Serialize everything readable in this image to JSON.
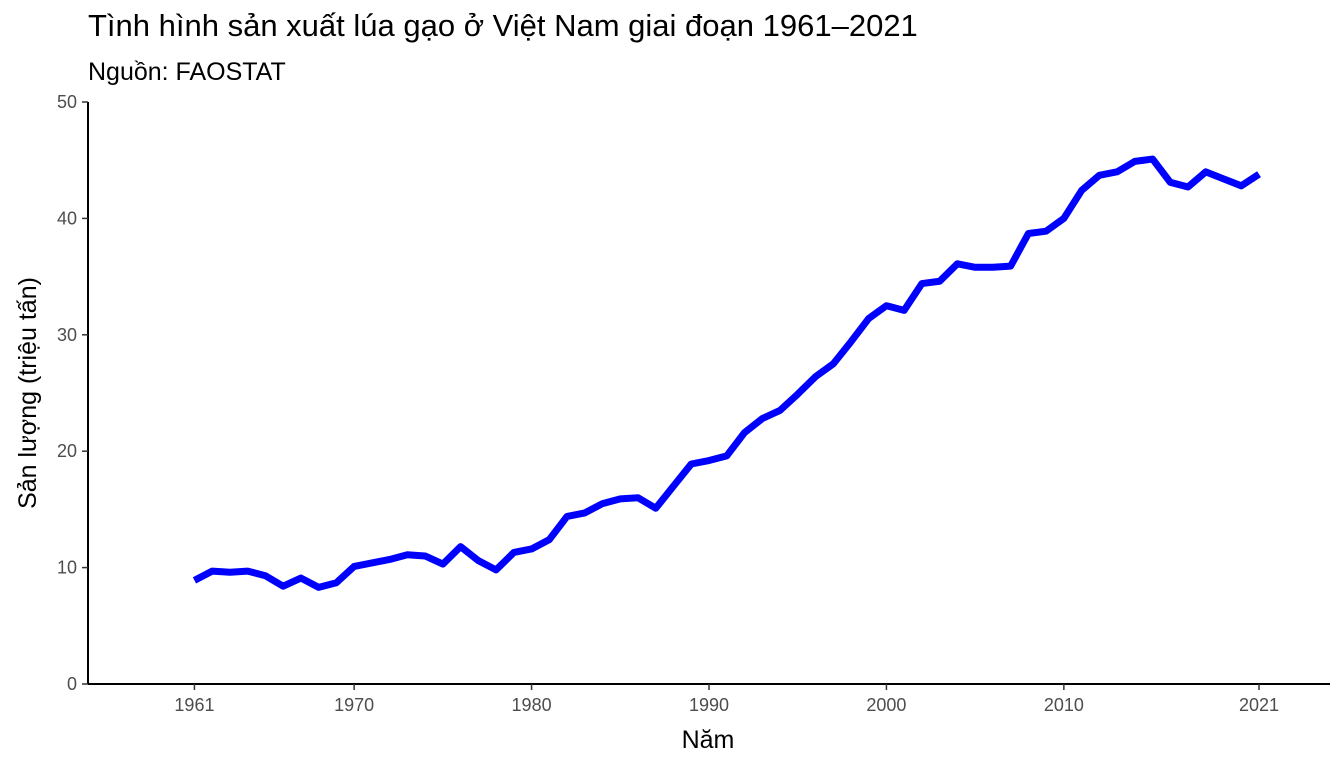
{
  "chart_data": {
    "type": "line",
    "title": "Tình hình sản xuất lúa gạo ở Việt Nam giai đoạn 1961–2021",
    "subtitle": "Nguồn: FAOSTAT",
    "xlabel": "Năm",
    "ylabel": "Sản lượng (triệu tấn)",
    "xlim": [
      1955,
      2025
    ],
    "ylim": [
      0,
      50
    ],
    "xticks": [
      1961,
      1970,
      1980,
      1990,
      2000,
      2010,
      2021
    ],
    "yticks": [
      0,
      10,
      20,
      30,
      40,
      50
    ],
    "grid": false,
    "line_color": "#0000ff",
    "series": [
      {
        "x": [
          1961,
          1962,
          1963,
          1964,
          1965,
          1966,
          1967,
          1968,
          1969,
          1970,
          1971,
          1972,
          1973,
          1974,
          1975,
          1976,
          1977,
          1978,
          1979,
          1980,
          1981,
          1982,
          1983,
          1984,
          1985,
          1986,
          1987,
          1988,
          1989,
          1990,
          1991,
          1992,
          1993,
          1994,
          1995,
          1996,
          1997,
          1998,
          1999,
          2000,
          2001,
          2002,
          2003,
          2004,
          2005,
          2006,
          2007,
          2008,
          2009,
          2010,
          2011,
          2012,
          2013,
          2014,
          2015,
          2016,
          2017,
          2018,
          2019,
          2020,
          2021
        ],
        "values": [
          8.9,
          9.7,
          9.6,
          9.7,
          9.3,
          8.4,
          9.1,
          8.3,
          8.7,
          10.1,
          10.4,
          10.7,
          11.1,
          11.0,
          10.3,
          11.8,
          10.6,
          9.8,
          11.3,
          11.6,
          12.4,
          14.4,
          14.7,
          15.5,
          15.9,
          16.0,
          15.1,
          17.0,
          18.9,
          19.2,
          19.6,
          21.6,
          22.8,
          23.5,
          24.9,
          26.4,
          27.5,
          29.4,
          31.4,
          32.5,
          32.1,
          34.4,
          34.6,
          36.1,
          35.8,
          35.8,
          35.9,
          38.7,
          38.9,
          40.0,
          42.4,
          43.7,
          44.0,
          44.9,
          45.1,
          43.1,
          42.7,
          44.0,
          43.4,
          42.8,
          43.8
        ]
      }
    ]
  }
}
